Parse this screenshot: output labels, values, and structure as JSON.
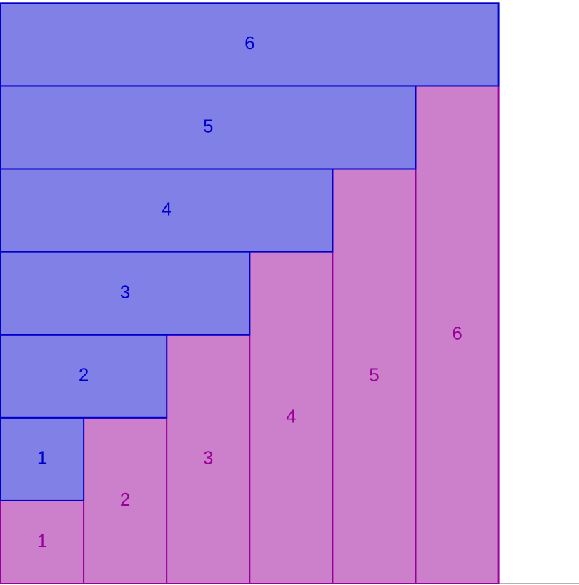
{
  "blue_bars": [
    {
      "label": "1"
    },
    {
      "label": "2"
    },
    {
      "label": "3"
    },
    {
      "label": "4"
    },
    {
      "label": "5"
    },
    {
      "label": "6"
    }
  ],
  "pink_bars": [
    {
      "label": "1"
    },
    {
      "label": "2"
    },
    {
      "label": "3"
    },
    {
      "label": "4"
    },
    {
      "label": "5"
    },
    {
      "label": "6"
    }
  ]
}
